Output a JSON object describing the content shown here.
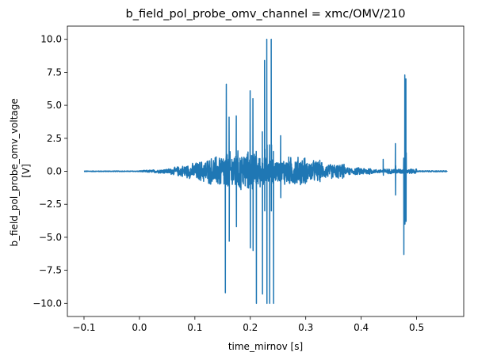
{
  "chart_data": {
    "type": "line",
    "title": "b_field_pol_probe_omv_channel = xmc/OMV/210",
    "xlabel": "time_mirnov [s]",
    "ylabel_lines": [
      "b_field_pol_probe_omv_voltage",
      "[V]"
    ],
    "xlim": [
      -0.13,
      0.585
    ],
    "ylim": [
      -11.0,
      11.0
    ],
    "xticks": [
      -0.1,
      0.0,
      0.1,
      0.2,
      0.3,
      0.4,
      0.5
    ],
    "xtick_labels": [
      "−0.1",
      "0.0",
      "0.1",
      "0.2",
      "0.3",
      "0.4",
      "0.5"
    ],
    "yticks": [
      -10.0,
      -7.5,
      -5.0,
      -2.5,
      0.0,
      2.5,
      5.0,
      7.5,
      10.0
    ],
    "ytick_labels": [
      "−10.0",
      "−7.5",
      "−5.0",
      "−2.5",
      "0.0",
      "2.5",
      "5.0",
      "7.5",
      "10.0"
    ],
    "series_color": "#1f77b4",
    "t_range": [
      -0.1,
      0.555
    ],
    "spikes": [
      {
        "t": 0.155,
        "min": -9.2,
        "max": 0.5
      },
      {
        "t": 0.157,
        "min": -1.0,
        "max": 6.6
      },
      {
        "t": 0.162,
        "min": -5.3,
        "max": 4.1
      },
      {
        "t": 0.175,
        "min": -4.2,
        "max": 4.2
      },
      {
        "t": 0.2,
        "min": -5.8,
        "max": 6.1
      },
      {
        "t": 0.205,
        "min": -6.0,
        "max": 5.5
      },
      {
        "t": 0.211,
        "min": -10.0,
        "max": 1.5
      },
      {
        "t": 0.222,
        "min": -9.3,
        "max": 3.0
      },
      {
        "t": 0.226,
        "min": -3.0,
        "max": 8.4
      },
      {
        "t": 0.23,
        "min": -10.0,
        "max": 10.0
      },
      {
        "t": 0.235,
        "min": -10.0,
        "max": 2.0
      },
      {
        "t": 0.238,
        "min": -3.0,
        "max": 10.0
      },
      {
        "t": 0.242,
        "min": -10.0,
        "max": 1.5
      },
      {
        "t": 0.255,
        "min": -2.0,
        "max": 2.7
      },
      {
        "t": 0.44,
        "min": -0.3,
        "max": 0.9
      },
      {
        "t": 0.462,
        "min": -1.8,
        "max": 2.1
      },
      {
        "t": 0.477,
        "min": -6.3,
        "max": 1.0
      },
      {
        "t": 0.479,
        "min": -4.0,
        "max": 7.3
      },
      {
        "t": 0.481,
        "min": -3.8,
        "max": 7.0
      }
    ]
  }
}
